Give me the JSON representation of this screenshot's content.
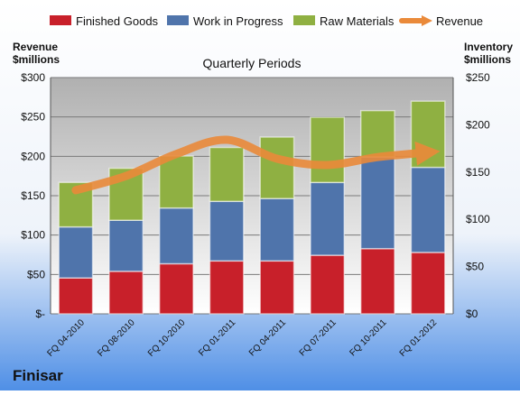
{
  "company": "Finisar",
  "chart_data": {
    "type": "bar",
    "stacked": true,
    "title": "Quarterly Periods",
    "left_axis": {
      "label_line1": "Revenue",
      "label_line2": "$millions",
      "min": 0,
      "max": 300,
      "ticks": [
        "$-",
        "$50",
        "$100",
        "$150",
        "$200",
        "$250",
        "$300"
      ]
    },
    "right_axis": {
      "label_line1": "Inventory",
      "label_line2": "$millions",
      "min": 0,
      "max": 250,
      "ticks": [
        "$0",
        "$50",
        "$100",
        "$150",
        "$200",
        "$250"
      ]
    },
    "categories": [
      "FQ 04-2010",
      "FQ 08-2010",
      "FQ 10-2010",
      "FQ 01-2011",
      "FQ 04-2011",
      "FQ 07-2011",
      "FQ 10-2011",
      "FQ 01-2012"
    ],
    "series": [
      {
        "name": "Finished Goods",
        "axis": "right",
        "color": "#c8202a",
        "values": [
          38,
          45,
          53,
          56,
          56,
          62,
          69,
          65
        ]
      },
      {
        "name": "Work in Progress",
        "axis": "right",
        "color": "#4f74ab",
        "values": [
          54,
          54,
          59,
          63,
          66,
          77,
          97,
          90
        ]
      },
      {
        "name": "Raw Materials",
        "axis": "right",
        "color": "#8fb042",
        "values": [
          47,
          55,
          55,
          57,
          65,
          69,
          49,
          70
        ]
      },
      {
        "name": "Revenue",
        "axis": "left",
        "type": "line",
        "color": "#ea8a3a",
        "values": [
          157,
          175,
          203,
          221,
          197,
          189,
          199,
          205
        ]
      }
    ],
    "grid": true,
    "legend": "top"
  }
}
